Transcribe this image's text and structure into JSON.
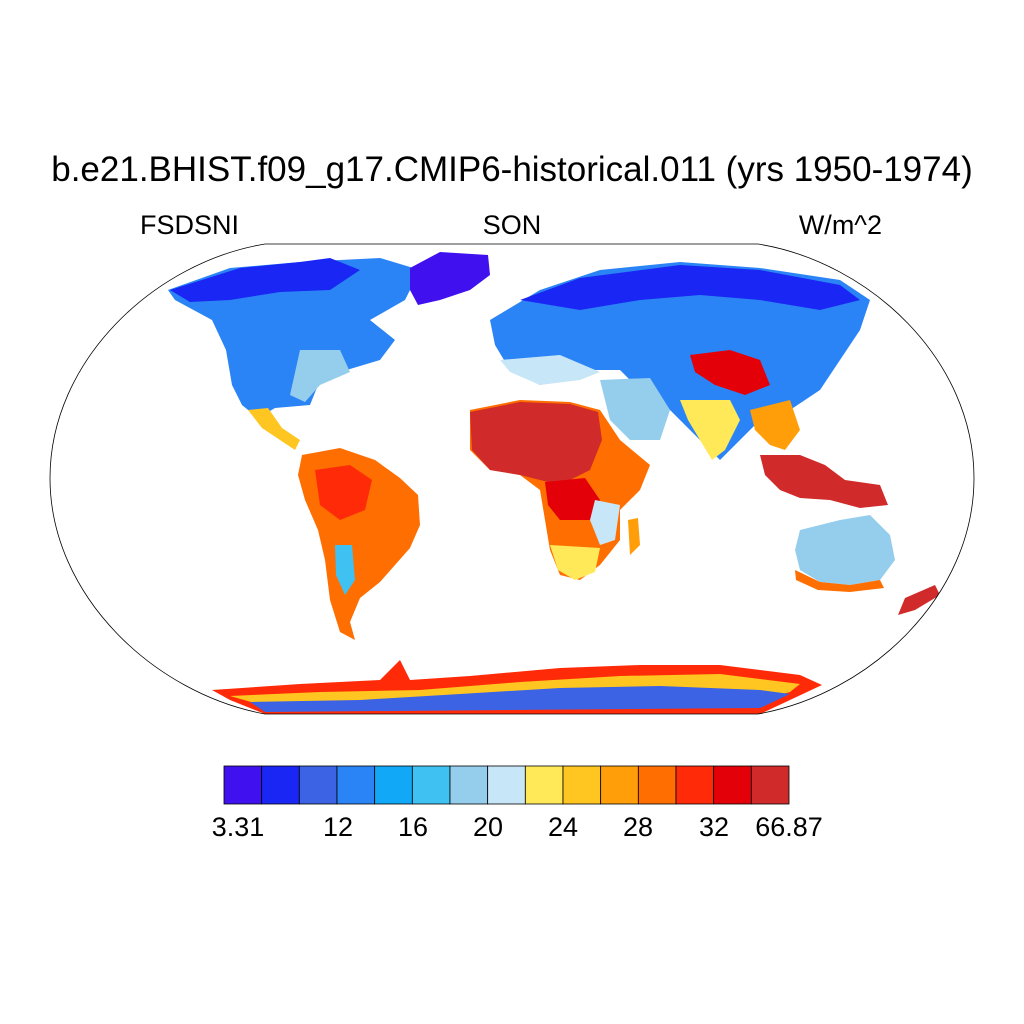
{
  "title": "b.e21.BHIST.f09_g17.CMIP6-historical.011 (yrs 1950-1974)",
  "variable": "FSDSNI",
  "season": "SON",
  "units": "W/m^2",
  "projection": "Robinson",
  "colorbar": {
    "colors": [
      "#4010ee",
      "#1a26f3",
      "#3b63e3",
      "#2a84f5",
      "#11a8f8",
      "#3fc1f2",
      "#95cdec",
      "#c7e6f7",
      "#ffe959",
      "#ffc520",
      "#ff9e09",
      "#ff6e00",
      "#ff2a08",
      "#e30008",
      "#d12a2a"
    ],
    "tick_labels": [
      "3.31",
      "12",
      "16",
      "20",
      "24",
      "28",
      "32",
      "66.87"
    ]
  },
  "regions": [
    {
      "name": "sahara-sahel",
      "level": 14
    },
    {
      "name": "amazon",
      "level": 12
    },
    {
      "name": "maritime-continent",
      "level": 14
    },
    {
      "name": "tibet-plateau",
      "level": 13
    },
    {
      "name": "arctic",
      "level": 1
    },
    {
      "name": "antarctic-interior",
      "level": 3
    },
    {
      "name": "antarctic-coast",
      "level": 12
    },
    {
      "name": "australia-interior",
      "level": 6
    },
    {
      "name": "northern-eurasia",
      "level": 4
    }
  ]
}
